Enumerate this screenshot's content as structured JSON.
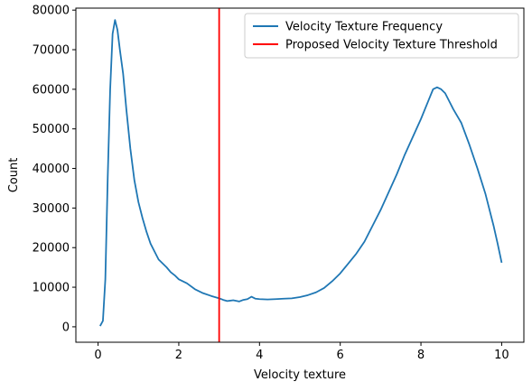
{
  "chart_data": {
    "type": "line",
    "title": "",
    "xlabel": "Velocity texture",
    "ylabel": "Count",
    "xlim": [
      -0.55,
      10.55
    ],
    "ylim": [
      -3900,
      80500
    ],
    "x_ticks": [
      0,
      2,
      4,
      6,
      8,
      10
    ],
    "y_ticks": [
      0,
      10000,
      20000,
      30000,
      40000,
      50000,
      60000,
      70000,
      80000
    ],
    "grid": false,
    "legend_position": "upper-right",
    "series": [
      {
        "name": "Velocity Texture Frequency",
        "color": "#1f77b4",
        "points": [
          [
            0.05,
            200
          ],
          [
            0.12,
            1500
          ],
          [
            0.18,
            12000
          ],
          [
            0.24,
            38000
          ],
          [
            0.3,
            60000
          ],
          [
            0.36,
            74000
          ],
          [
            0.42,
            77500
          ],
          [
            0.48,
            75000
          ],
          [
            0.54,
            70000
          ],
          [
            0.62,
            64000
          ],
          [
            0.7,
            55000
          ],
          [
            0.8,
            45000
          ],
          [
            0.9,
            37000
          ],
          [
            1.0,
            31500
          ],
          [
            1.1,
            27500
          ],
          [
            1.2,
            24000
          ],
          [
            1.3,
            21000
          ],
          [
            1.4,
            19000
          ],
          [
            1.5,
            17000
          ],
          [
            1.6,
            16000
          ],
          [
            1.7,
            15000
          ],
          [
            1.8,
            13800
          ],
          [
            1.9,
            13000
          ],
          [
            2.0,
            12000
          ],
          [
            2.2,
            11000
          ],
          [
            2.4,
            9500
          ],
          [
            2.6,
            8500
          ],
          [
            2.8,
            7800
          ],
          [
            3.0,
            7200
          ],
          [
            3.1,
            6800
          ],
          [
            3.2,
            6500
          ],
          [
            3.35,
            6700
          ],
          [
            3.5,
            6400
          ],
          [
            3.6,
            6800
          ],
          [
            3.7,
            7000
          ],
          [
            3.8,
            7600
          ],
          [
            3.9,
            7100
          ],
          [
            4.0,
            7000
          ],
          [
            4.2,
            6900
          ],
          [
            4.4,
            7000
          ],
          [
            4.6,
            7100
          ],
          [
            4.8,
            7200
          ],
          [
            5.0,
            7500
          ],
          [
            5.2,
            8000
          ],
          [
            5.4,
            8700
          ],
          [
            5.6,
            9800
          ],
          [
            5.8,
            11500
          ],
          [
            6.0,
            13500
          ],
          [
            6.2,
            16000
          ],
          [
            6.4,
            18500
          ],
          [
            6.6,
            21500
          ],
          [
            6.8,
            25500
          ],
          [
            7.0,
            29500
          ],
          [
            7.2,
            34000
          ],
          [
            7.4,
            38500
          ],
          [
            7.6,
            43500
          ],
          [
            7.8,
            48000
          ],
          [
            8.0,
            52500
          ],
          [
            8.2,
            57500
          ],
          [
            8.3,
            60000
          ],
          [
            8.4,
            60500
          ],
          [
            8.5,
            60000
          ],
          [
            8.6,
            59000
          ],
          [
            8.7,
            57000
          ],
          [
            8.8,
            55000
          ],
          [
            9.0,
            51500
          ],
          [
            9.2,
            46000
          ],
          [
            9.4,
            40000
          ],
          [
            9.6,
            33500
          ],
          [
            9.8,
            25500
          ],
          [
            9.9,
            21000
          ],
          [
            10.0,
            16200
          ]
        ]
      },
      {
        "name": "Proposed Velocity Texture Threshold",
        "color": "#ff0000",
        "type": "vline",
        "x": 3.0
      }
    ]
  }
}
